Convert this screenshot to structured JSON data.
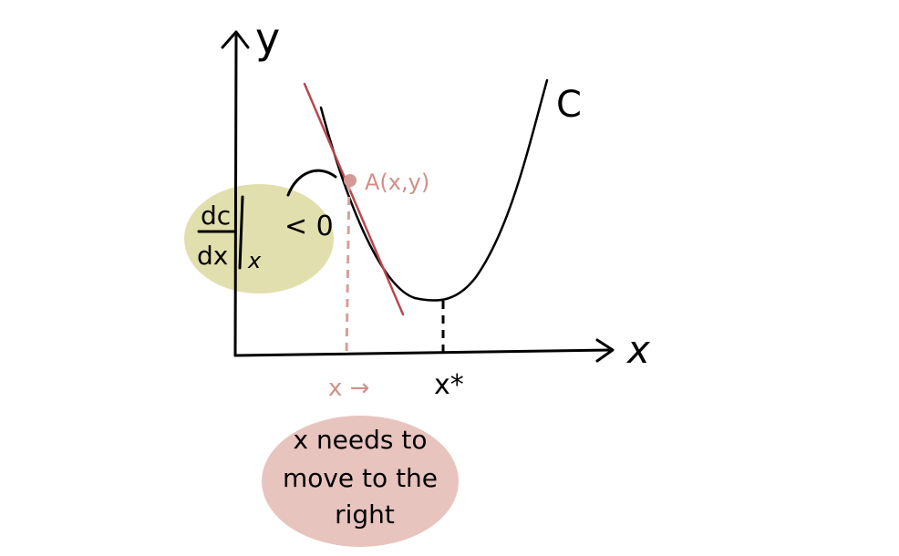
{
  "axes": {
    "y_label": "y",
    "x_label": "x"
  },
  "curve_label": "C",
  "point_label": "A(x,y)",
  "x_marker": "x →",
  "x_star": "x*",
  "derivative": {
    "numerator": "dc",
    "denominator": "dx",
    "subscript": "x",
    "relation": "< 0"
  },
  "note": {
    "line1": "x needs to",
    "line2": "move to the",
    "line3": "right"
  },
  "colors": {
    "curve": "#000000",
    "tangent": "#b9484d",
    "point": "#d39995",
    "highlight_yellow": "#e2dfae",
    "highlight_pink": "#e8c4bf",
    "muted_pink_text": "#d08f89"
  }
}
